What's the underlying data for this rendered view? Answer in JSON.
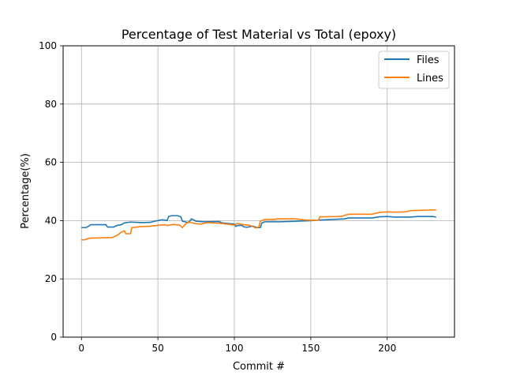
{
  "chart_data": {
    "type": "line",
    "title": "Percentage of Test Material vs Total (epoxy)",
    "xlabel": "Commit #",
    "ylabel": "Percentage(%)",
    "xlim": [
      -12,
      244
    ],
    "ylim": [
      0,
      100
    ],
    "xticks": [
      0,
      50,
      100,
      150,
      200
    ],
    "yticks": [
      0,
      20,
      40,
      60,
      80,
      100
    ],
    "grid": true,
    "legend_position": "top-right",
    "series": [
      {
        "name": "Files",
        "color": "#1f77b4",
        "points": [
          [
            0,
            37.6
          ],
          [
            3,
            37.6
          ],
          [
            5,
            38.2
          ],
          [
            6,
            38.6
          ],
          [
            16,
            38.6
          ],
          [
            17,
            37.8
          ],
          [
            21,
            37.8
          ],
          [
            23,
            38.3
          ],
          [
            26,
            38.6
          ],
          [
            28,
            39.2
          ],
          [
            32,
            39.5
          ],
          [
            40,
            39.3
          ],
          [
            45,
            39.4
          ],
          [
            48,
            39.8
          ],
          [
            50,
            40.0
          ],
          [
            53,
            40.3
          ],
          [
            56,
            40.0
          ],
          [
            57,
            41.4
          ],
          [
            59,
            41.7
          ],
          [
            63,
            41.7
          ],
          [
            65,
            41.3
          ],
          [
            66,
            39.8
          ],
          [
            70,
            39.3
          ],
          [
            72,
            40.6
          ],
          [
            75,
            39.8
          ],
          [
            80,
            39.6
          ],
          [
            90,
            39.7
          ],
          [
            92,
            39.2
          ],
          [
            100,
            38.8
          ],
          [
            101,
            38.0
          ],
          [
            102,
            38.3
          ],
          [
            105,
            38.4
          ],
          [
            106,
            37.9
          ],
          [
            108,
            37.7
          ],
          [
            112,
            38.1
          ],
          [
            115,
            37.6
          ],
          [
            117,
            37.6
          ],
          [
            118,
            39.2
          ],
          [
            120,
            39.6
          ],
          [
            130,
            39.6
          ],
          [
            140,
            39.8
          ],
          [
            150,
            40.0
          ],
          [
            155,
            40.2
          ],
          [
            160,
            40.3
          ],
          [
            172,
            40.6
          ],
          [
            175,
            40.9
          ],
          [
            190,
            40.9
          ],
          [
            195,
            41.3
          ],
          [
            200,
            41.4
          ],
          [
            205,
            41.2
          ],
          [
            215,
            41.2
          ],
          [
            220,
            41.4
          ],
          [
            230,
            41.4
          ],
          [
            232,
            41.2
          ]
        ]
      },
      {
        "name": "Lines",
        "color": "#ff7f0e",
        "points": [
          [
            0,
            33.4
          ],
          [
            2,
            33.4
          ],
          [
            4,
            33.8
          ],
          [
            6,
            34.0
          ],
          [
            14,
            34.1
          ],
          [
            20,
            34.2
          ],
          [
            22,
            34.6
          ],
          [
            24,
            35.2
          ],
          [
            26,
            36.0
          ],
          [
            28,
            36.5
          ],
          [
            29,
            35.5
          ],
          [
            32,
            35.5
          ],
          [
            33,
            37.6
          ],
          [
            38,
            37.9
          ],
          [
            45,
            38.1
          ],
          [
            50,
            38.4
          ],
          [
            55,
            38.6
          ],
          [
            56,
            38.3
          ],
          [
            60,
            38.7
          ],
          [
            64,
            38.5
          ],
          [
            66,
            37.6
          ],
          [
            68,
            38.8
          ],
          [
            70,
            39.6
          ],
          [
            74,
            39.0
          ],
          [
            78,
            38.8
          ],
          [
            82,
            39.3
          ],
          [
            90,
            39.1
          ],
          [
            95,
            38.8
          ],
          [
            100,
            38.5
          ],
          [
            102,
            39.0
          ],
          [
            106,
            38.6
          ],
          [
            110,
            38.4
          ],
          [
            114,
            37.5
          ],
          [
            116,
            37.8
          ],
          [
            117,
            39.8
          ],
          [
            120,
            40.4
          ],
          [
            126,
            40.4
          ],
          [
            128,
            40.6
          ],
          [
            140,
            40.6
          ],
          [
            145,
            40.3
          ],
          [
            150,
            40.1
          ],
          [
            155,
            40.2
          ],
          [
            156,
            41.3
          ],
          [
            170,
            41.4
          ],
          [
            172,
            41.8
          ],
          [
            175,
            42.2
          ],
          [
            190,
            42.2
          ],
          [
            195,
            42.8
          ],
          [
            200,
            43.0
          ],
          [
            205,
            42.9
          ],
          [
            212,
            43.0
          ],
          [
            215,
            43.4
          ],
          [
            225,
            43.6
          ],
          [
            232,
            43.7
          ]
        ]
      }
    ]
  }
}
